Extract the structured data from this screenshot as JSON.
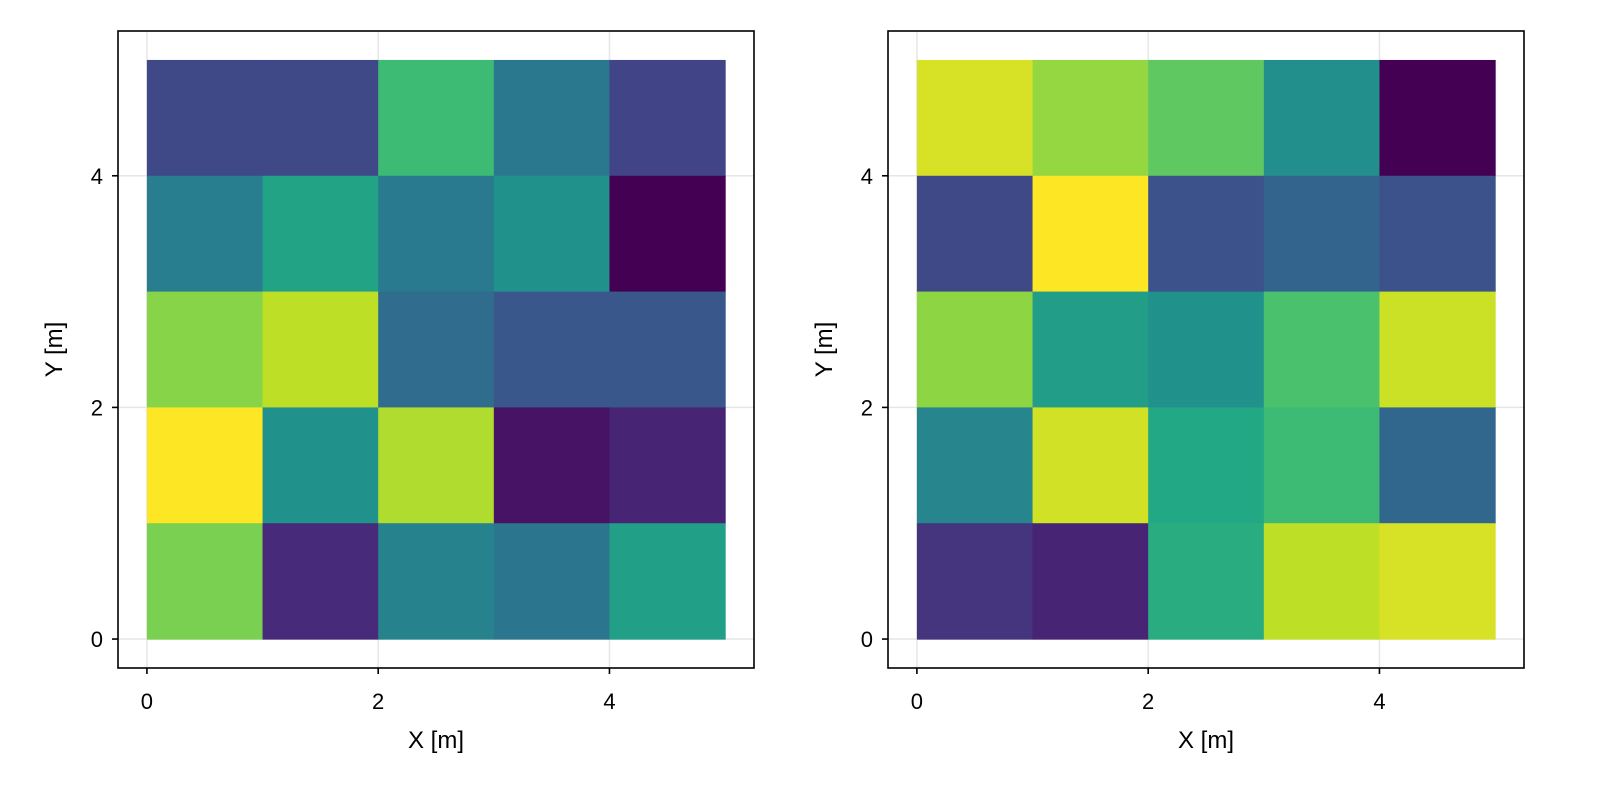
{
  "chart_data": [
    {
      "type": "heatmap",
      "xlabel": "X [m]",
      "ylabel": "Y [m]",
      "xlim": [
        -0.25,
        5.25
      ],
      "ylim": [
        -0.25,
        5.25
      ],
      "xticks": [
        0,
        2,
        4
      ],
      "yticks": [
        0,
        2,
        4
      ],
      "xtick_labels": [
        "0",
        "2",
        "4"
      ],
      "ytick_labels": [
        "0",
        "2",
        "4"
      ],
      "grid": true,
      "colormap": "viridis",
      "x_edges": [
        0,
        1,
        2,
        3,
        4,
        5
      ],
      "y_edges": [
        0,
        1,
        2,
        3,
        4,
        5
      ],
      "rows_top_to_bottom": [
        [
          0.22,
          0.22,
          0.68,
          0.4,
          0.2
        ],
        [
          0.42,
          0.58,
          0.41,
          0.5,
          0.0
        ],
        [
          0.82,
          0.9,
          0.35,
          0.27,
          0.27
        ],
        [
          1.0,
          0.5,
          0.88,
          0.05,
          0.1
        ],
        [
          0.8,
          0.12,
          0.44,
          0.39,
          0.56
        ]
      ]
    },
    {
      "type": "heatmap",
      "xlabel": "X [m]",
      "ylabel": "Y [m]",
      "xlim": [
        -0.25,
        5.25
      ],
      "ylim": [
        -0.25,
        5.25
      ],
      "xticks": [
        0,
        2,
        4
      ],
      "yticks": [
        0,
        2,
        4
      ],
      "xtick_labels": [
        "0",
        "2",
        "4"
      ],
      "ytick_labels": [
        "0",
        "2",
        "4"
      ],
      "grid": true,
      "colormap": "viridis",
      "x_edges": [
        0,
        1,
        2,
        3,
        4,
        5
      ],
      "y_edges": [
        0,
        1,
        2,
        3,
        4,
        5
      ],
      "rows_top_to_bottom": [
        [
          0.94,
          0.84,
          0.75,
          0.49,
          0.0
        ],
        [
          0.22,
          1.0,
          0.25,
          0.32,
          0.25
        ],
        [
          0.83,
          0.55,
          0.5,
          0.71,
          0.92
        ],
        [
          0.45,
          0.93,
          0.6,
          0.68,
          0.33
        ],
        [
          0.15,
          0.1,
          0.62,
          0.9,
          0.94
        ]
      ]
    }
  ]
}
